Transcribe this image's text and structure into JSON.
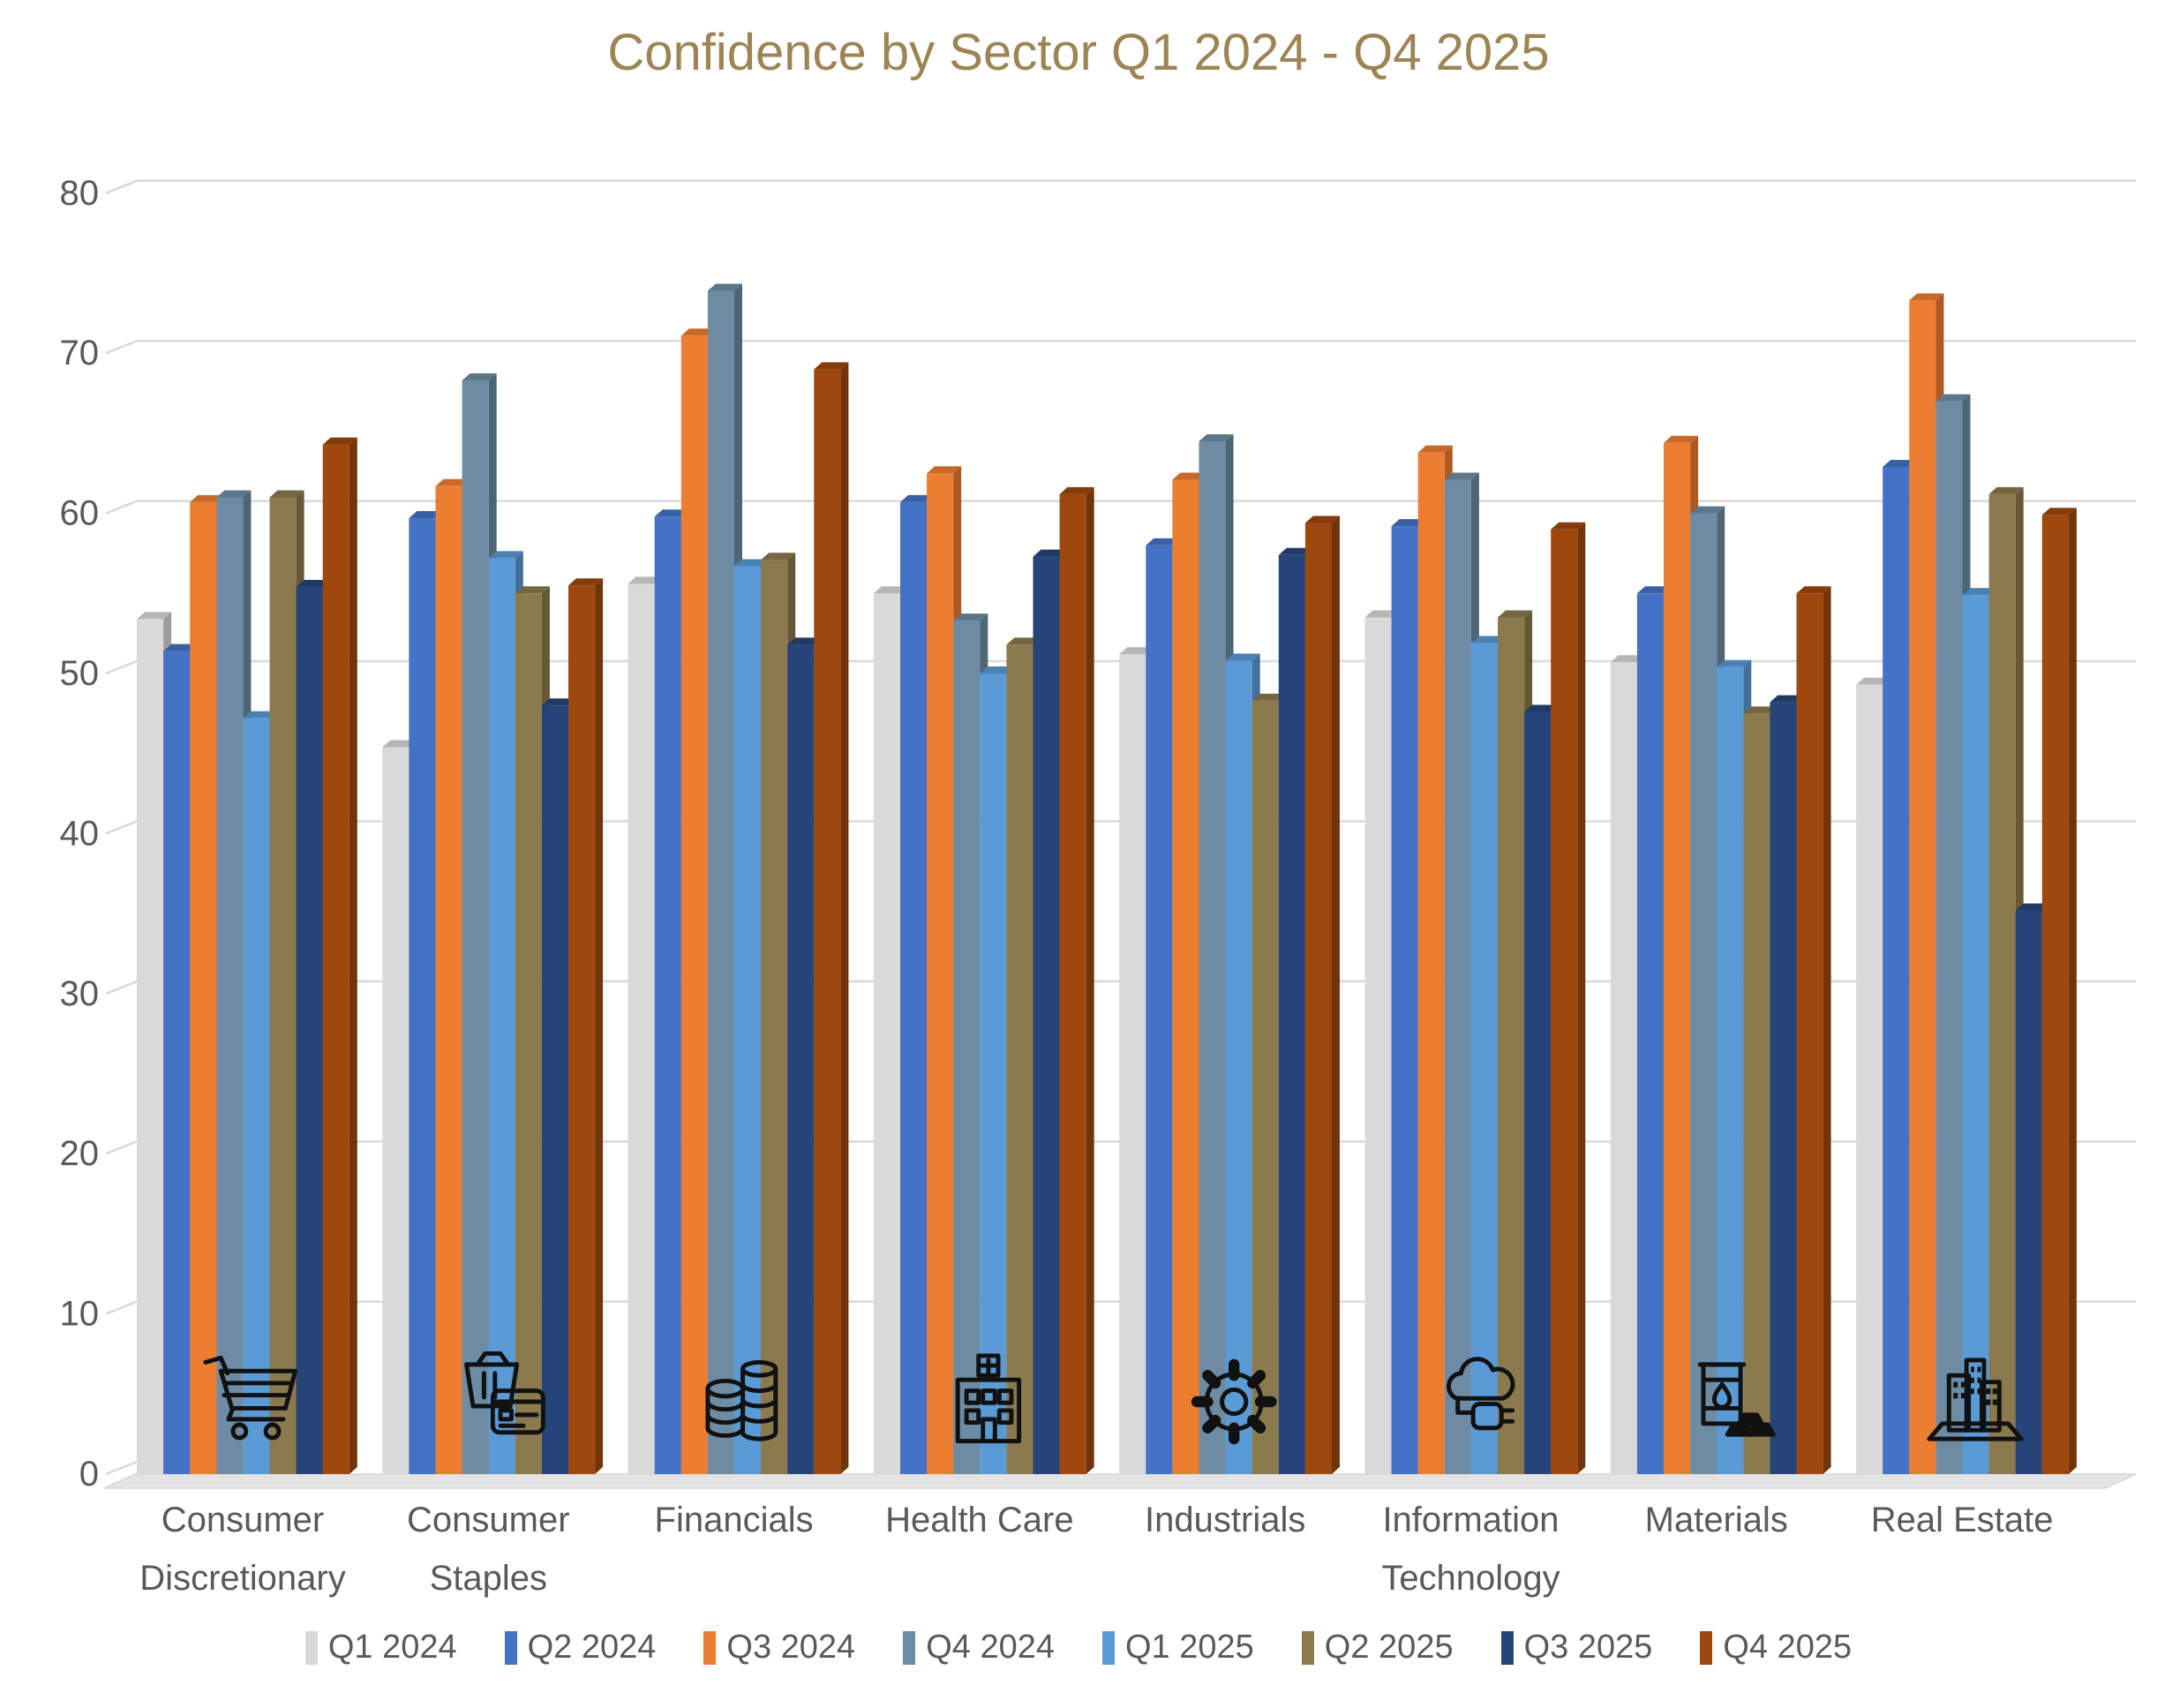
{
  "title": {
    "text": "Confidence by Sector Q1 2024 - Q4 2025",
    "color": "#9C8454"
  },
  "axis": {
    "text_color": "#595959",
    "gridline_color": "#D9D9D9"
  },
  "legend": {
    "position": "bottom"
  },
  "icons": [
    {
      "name": "shopping-cart-icon",
      "sector": "Consumer Discretionary"
    },
    {
      "name": "shopping-basket-card-icon",
      "sector": "Consumer Staples"
    },
    {
      "name": "coin-stacks-icon",
      "sector": "Financials"
    },
    {
      "name": "hospital-icon",
      "sector": "Health Care"
    },
    {
      "name": "gear-icon",
      "sector": "Industrials"
    },
    {
      "name": "cloud-plug-icon",
      "sector": "Information Technology"
    },
    {
      "name": "oil-barrel-icon",
      "sector": "Materials"
    },
    {
      "name": "city-buildings-icon",
      "sector": "Real Estate"
    }
  ],
  "chart_data": {
    "type": "bar",
    "style": "3d-clustered-column",
    "title": "Confidence by Sector Q1 2024 - Q4 2025",
    "xlabel": "",
    "ylabel": "",
    "ylim": [
      0,
      80
    ],
    "yticks": [
      0,
      10,
      20,
      30,
      40,
      50,
      60,
      70,
      80
    ],
    "grid": true,
    "legend_position": "bottom",
    "categories": [
      "Consumer Discretionary",
      "Consumer Staples",
      "Financials",
      "Health Care",
      "Industrials",
      "Information Technology",
      "Materials",
      "Real Estate"
    ],
    "category_label_lines": [
      [
        "Consumer",
        "Discretionary"
      ],
      [
        "Consumer",
        "Staples"
      ],
      [
        "Financials"
      ],
      [
        "Health Care"
      ],
      [
        "Industrials"
      ],
      [
        "Information",
        "Technology"
      ],
      [
        "Materials"
      ],
      [
        "Real Estate"
      ]
    ],
    "series": [
      {
        "name": "Q1 2024",
        "color": "#D9D9D9",
        "values": [
          53.4,
          45.4,
          55.6,
          55.0,
          51.2,
          53.5,
          50.7,
          49.3
        ]
      },
      {
        "name": "Q2 2024",
        "color": "#4472C4",
        "values": [
          51.4,
          59.7,
          59.8,
          60.7,
          58.0,
          59.2,
          55.0,
          62.9
        ]
      },
      {
        "name": "Q3 2024",
        "color": "#ED7D31",
        "values": [
          60.7,
          61.7,
          71.1,
          62.5,
          62.1,
          63.8,
          64.4,
          73.3
        ]
      },
      {
        "name": "Q4 2024",
        "color": "#6D8CA4",
        "values": [
          61.0,
          68.3,
          73.9,
          53.3,
          64.5,
          62.1,
          60.0,
          67.0
        ]
      },
      {
        "name": "Q1 2025",
        "color": "#5B9BD5",
        "values": [
          47.2,
          57.2,
          56.7,
          50.0,
          50.8,
          51.9,
          50.4,
          54.9
        ]
      },
      {
        "name": "Q2 2025",
        "color": "#8B7A4D",
        "values": [
          61.0,
          55.0,
          57.1,
          51.8,
          48.3,
          53.5,
          47.5,
          61.2
        ]
      },
      {
        "name": "Q3 2025",
        "color": "#264478",
        "values": [
          55.4,
          48.0,
          51.8,
          57.3,
          57.4,
          47.6,
          48.2,
          35.2
        ]
      },
      {
        "name": "Q4 2025",
        "color": "#9E480E",
        "values": [
          64.3,
          55.5,
          69.0,
          61.2,
          59.4,
          59.0,
          55.0,
          59.9
        ]
      }
    ]
  }
}
